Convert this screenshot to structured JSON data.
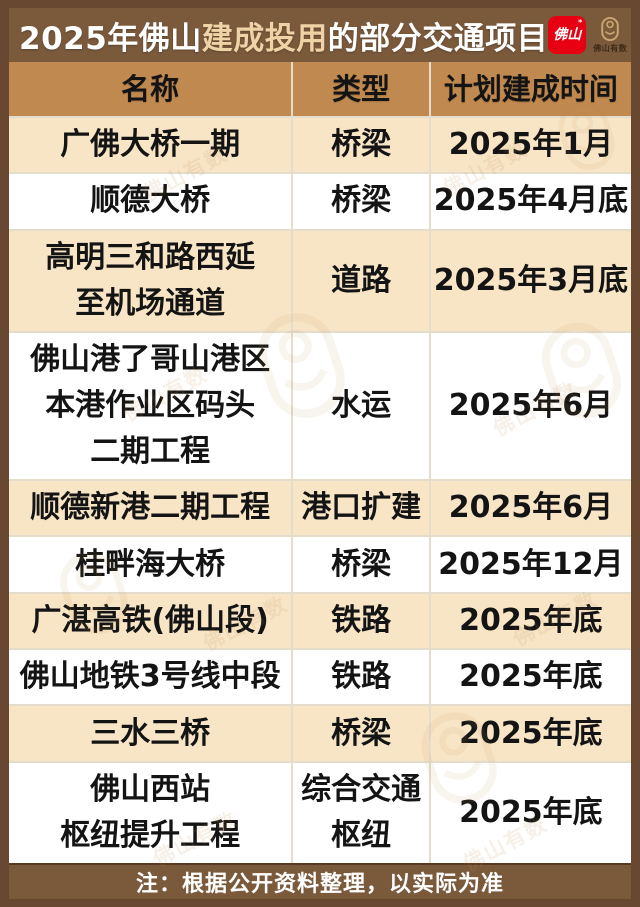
{
  "title": {
    "prefix": "2025年佛山",
    "highlight": "建成投用",
    "suffix": "的部分交通项目"
  },
  "logos": {
    "foshan_badge": "佛山",
    "badge_mark": "*",
    "brand_name": "佛山有数"
  },
  "table": {
    "headers": [
      "名称",
      "类型",
      "计划建成时间"
    ],
    "rows": [
      {
        "name": "广佛大桥一期",
        "type": "桥梁",
        "time": "2025年1月"
      },
      {
        "name": "顺德大桥",
        "type": "桥梁",
        "time": "2025年4月底"
      },
      {
        "name": "高明三和路西延\n至机场通道",
        "type": "道路",
        "time": "2025年3月底"
      },
      {
        "name": "佛山港了哥山港区\n本港作业区码头\n二期工程",
        "type": "水运",
        "time": "2025年6月"
      },
      {
        "name": "顺德新港二期工程",
        "type": "港口扩建",
        "time": "2025年6月"
      },
      {
        "name": "桂畔海大桥",
        "type": "桥梁",
        "time": "2025年12月"
      },
      {
        "name": "广湛高铁(佛山段)",
        "type": "铁路",
        "time": "2025年底"
      },
      {
        "name": "佛山地铁3号线中段",
        "type": "铁路",
        "time": "2025年底"
      },
      {
        "name": "三水三桥",
        "type": "桥梁",
        "time": "2025年底"
      },
      {
        "name": "佛山西站\n枢纽提升工程",
        "type": "综合交通\n枢纽",
        "time": "2025年底"
      }
    ]
  },
  "note": "注：根据公开资料整理，以实际为准",
  "watermark": {
    "text": "佛山有数"
  },
  "colors": {
    "frame": "#694831",
    "title-bar": "#7b5a3c",
    "header": "#c0894f",
    "row-alt": "#f8e5c6",
    "highlight": "#eed3a6",
    "badge-red": "#e60012",
    "note-bar": "#7b5a3c",
    "divider": "#e5ddcc",
    "emblem": "#c9a571"
  },
  "chart_data": {
    "type": "table",
    "title": "2025年佛山建成投用的部分交通项目",
    "columns": [
      "名称",
      "类型",
      "计划建成时间"
    ],
    "rows": [
      [
        "广佛大桥一期",
        "桥梁",
        "2025年1月"
      ],
      [
        "顺德大桥",
        "桥梁",
        "2025年4月底"
      ],
      [
        "高明三和路西延至机场通道",
        "道路",
        "2025年3月底"
      ],
      [
        "佛山港了哥山港区本港作业区码头二期工程",
        "水运",
        "2025年6月"
      ],
      [
        "顺德新港二期工程",
        "港口扩建",
        "2025年6月"
      ],
      [
        "桂畔海大桥",
        "桥梁",
        "2025年12月"
      ],
      [
        "广湛高铁(佛山段)",
        "铁路",
        "2025年底"
      ],
      [
        "佛山地铁3号线中段",
        "铁路",
        "2025年底"
      ],
      [
        "三水三桥",
        "桥梁",
        "2025年底"
      ],
      [
        "佛山西站枢纽提升工程",
        "综合交通枢纽",
        "2025年底"
      ]
    ],
    "footnote": "注：根据公开资料整理，以实际为准",
    "layout_hints": {
      "striped_rows": true,
      "stripe_color": "#f8e5c6",
      "header_color": "#c0894f"
    }
  }
}
